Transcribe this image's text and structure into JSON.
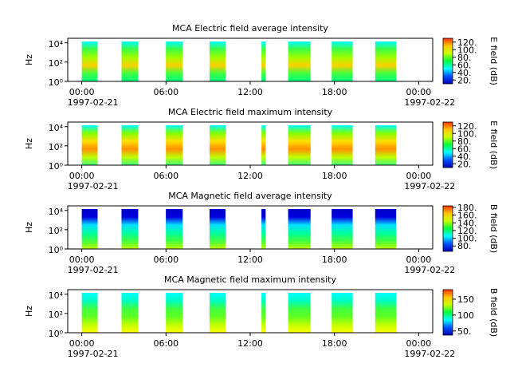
{
  "chart_data": [
    {
      "type": "spectrogram",
      "title": "MCA  Electric field average intensity",
      "ylabel": "Hz",
      "colorbar_label": "E field (dB)",
      "xlim": [
        -1,
        25
      ],
      "xticks": [
        {
          "value": 0,
          "label": "00:00"
        },
        {
          "value": 6,
          "label": "06:00"
        },
        {
          "value": 12,
          "label": "12:00"
        },
        {
          "value": 18,
          "label": "18:00"
        },
        {
          "value": 24,
          "label": "00:00"
        }
      ],
      "date_labels": [
        {
          "value": 0,
          "label": "1997-02-21"
        },
        {
          "value": 24,
          "label": "1997-02-22"
        }
      ],
      "ylim": [
        1,
        30000
      ],
      "log_y": true,
      "yticks": [
        {
          "value": 1,
          "label": "10⁰"
        },
        {
          "value": 100,
          "label": "10²"
        },
        {
          "value": 10000,
          "label": "10⁴"
        }
      ],
      "clim": [
        10,
        130
      ],
      "cticks": [
        {
          "value": 20,
          "label": "20."
        },
        {
          "value": 40,
          "label": "40."
        },
        {
          "value": 60,
          "label": "60."
        },
        {
          "value": 80,
          "label": "80."
        },
        {
          "value": 100,
          "label": "100."
        },
        {
          "value": 120,
          "label": "120."
        }
      ],
      "colormap": [
        "#0000b4",
        "#0050ff",
        "#00ffff",
        "#00ff40",
        "#c8ff00",
        "#ffc800",
        "#ff3000"
      ],
      "band_colors": [
        "#00ffff",
        "#40ff40",
        "#a0ff00",
        "#ffd000",
        "#40ff40",
        "#00ff80"
      ],
      "segments": [
        [
          0,
          1.13
        ],
        [
          2.83,
          4.02
        ],
        [
          5.99,
          7.19
        ],
        [
          9.1,
          10.24
        ],
        [
          12.8,
          13.1
        ],
        [
          14.7,
          16.3
        ],
        [
          17.8,
          19.3
        ],
        [
          20.9,
          22.4
        ]
      ]
    },
    {
      "type": "spectrogram",
      "title": "MCA  Electric field maximum intensity",
      "ylabel": "Hz",
      "colorbar_label": "E field (dB)",
      "xlim": [
        -1,
        25
      ],
      "xticks": [
        {
          "value": 0,
          "label": "00:00"
        },
        {
          "value": 6,
          "label": "06:00"
        },
        {
          "value": 12,
          "label": "12:00"
        },
        {
          "value": 18,
          "label": "18:00"
        },
        {
          "value": 24,
          "label": "00:00"
        }
      ],
      "date_labels": [
        {
          "value": 0,
          "label": "1997-02-21"
        },
        {
          "value": 24,
          "label": "1997-02-22"
        }
      ],
      "ylim": [
        1,
        30000
      ],
      "log_y": true,
      "yticks": [
        {
          "value": 1,
          "label": "10⁰"
        },
        {
          "value": 100,
          "label": "10²"
        },
        {
          "value": 10000,
          "label": "10⁴"
        }
      ],
      "clim": [
        10,
        130
      ],
      "cticks": [
        {
          "value": 20,
          "label": "20."
        },
        {
          "value": 40,
          "label": "40."
        },
        {
          "value": 60,
          "label": "60."
        },
        {
          "value": 80,
          "label": "80."
        },
        {
          "value": 100,
          "label": "100."
        },
        {
          "value": 120,
          "label": "120."
        }
      ],
      "colormap": [
        "#0000b4",
        "#0050ff",
        "#00ffff",
        "#00ff40",
        "#c8ff00",
        "#ffc800",
        "#ff3000"
      ],
      "band_colors": [
        "#00ffff",
        "#80ff00",
        "#ffe000",
        "#ff9000",
        "#c0ff00",
        "#40ff80"
      ],
      "segments": [
        [
          0,
          1.13
        ],
        [
          2.83,
          4.02
        ],
        [
          5.99,
          7.19
        ],
        [
          9.1,
          10.24
        ],
        [
          12.8,
          13.1
        ],
        [
          14.7,
          16.3
        ],
        [
          17.8,
          19.3
        ],
        [
          20.9,
          22.4
        ]
      ]
    },
    {
      "type": "spectrogram",
      "title": "MCA  Magnetic field average intensity",
      "ylabel": "Hz",
      "colorbar_label": "B field (dB)",
      "xlim": [
        -1,
        25
      ],
      "xticks": [
        {
          "value": 0,
          "label": "00:00"
        },
        {
          "value": 6,
          "label": "06:00"
        },
        {
          "value": 12,
          "label": "12:00"
        },
        {
          "value": 18,
          "label": "18:00"
        },
        {
          "value": 24,
          "label": "00:00"
        }
      ],
      "date_labels": [
        {
          "value": 0,
          "label": "1997-02-21"
        },
        {
          "value": 24,
          "label": "1997-02-22"
        }
      ],
      "ylim": [
        1,
        30000
      ],
      "log_y": true,
      "yticks": [
        {
          "value": 1,
          "label": "10⁰"
        },
        {
          "value": 100,
          "label": "10²"
        },
        {
          "value": 10000,
          "label": "10⁴"
        }
      ],
      "clim": [
        66,
        184
      ],
      "cticks": [
        {
          "value": 80,
          "label": "80."
        },
        {
          "value": 100,
          "label": "100."
        },
        {
          "value": 120,
          "label": "120."
        },
        {
          "value": 140,
          "label": "140."
        },
        {
          "value": 160,
          "label": "160."
        },
        {
          "value": 180,
          "label": "180."
        }
      ],
      "colormap": [
        "#0000b4",
        "#0050ff",
        "#00ffff",
        "#00ff40",
        "#c8ff00",
        "#ffc800",
        "#ff3000"
      ],
      "band_colors": [
        "#0000c8",
        "#0000e0",
        "#00e0ff",
        "#00ffa0",
        "#40ff40",
        "#c0ff00"
      ],
      "segments": [
        [
          0,
          1.13
        ],
        [
          2.83,
          4.02
        ],
        [
          5.99,
          7.19
        ],
        [
          9.1,
          10.24
        ],
        [
          12.8,
          13.1
        ],
        [
          14.7,
          16.3
        ],
        [
          17.8,
          19.3
        ],
        [
          20.9,
          22.4
        ]
      ]
    },
    {
      "type": "spectrogram",
      "title": "MCA  Magnetic field maximum intensity",
      "ylabel": "Hz",
      "colorbar_label": "B field (dB)",
      "xlim": [
        -1,
        25
      ],
      "xticks": [
        {
          "value": 0,
          "label": "00:00"
        },
        {
          "value": 6,
          "label": "06:00"
        },
        {
          "value": 12,
          "label": "12:00"
        },
        {
          "value": 18,
          "label": "18:00"
        },
        {
          "value": 24,
          "label": "00:00"
        }
      ],
      "date_labels": [
        {
          "value": 0,
          "label": "1997-02-21"
        },
        {
          "value": 24,
          "label": "1997-02-22"
        }
      ],
      "ylim": [
        1,
        30000
      ],
      "log_y": true,
      "yticks": [
        {
          "value": 1,
          "label": "10⁰"
        },
        {
          "value": 100,
          "label": "10²"
        },
        {
          "value": 10000,
          "label": "10⁴"
        }
      ],
      "clim": [
        37,
        180
      ],
      "cticks": [
        {
          "value": 50,
          "label": "50."
        },
        {
          "value": 100,
          "label": "100"
        },
        {
          "value": 150,
          "label": "150"
        }
      ],
      "colormap": [
        "#0000b4",
        "#0050ff",
        "#00ffff",
        "#00ff40",
        "#c8ff00",
        "#ffc800",
        "#ff3000"
      ],
      "band_colors": [
        "#00ffff",
        "#00ffc0",
        "#40ff40",
        "#60ff20",
        "#c0ff00",
        "#ffff00"
      ],
      "segments": [
        [
          0,
          1.13
        ],
        [
          2.83,
          4.02
        ],
        [
          5.99,
          7.19
        ],
        [
          9.1,
          10.24
        ],
        [
          12.8,
          13.1
        ],
        [
          14.7,
          16.3
        ],
        [
          17.8,
          19.3
        ],
        [
          20.9,
          22.4
        ]
      ]
    }
  ]
}
